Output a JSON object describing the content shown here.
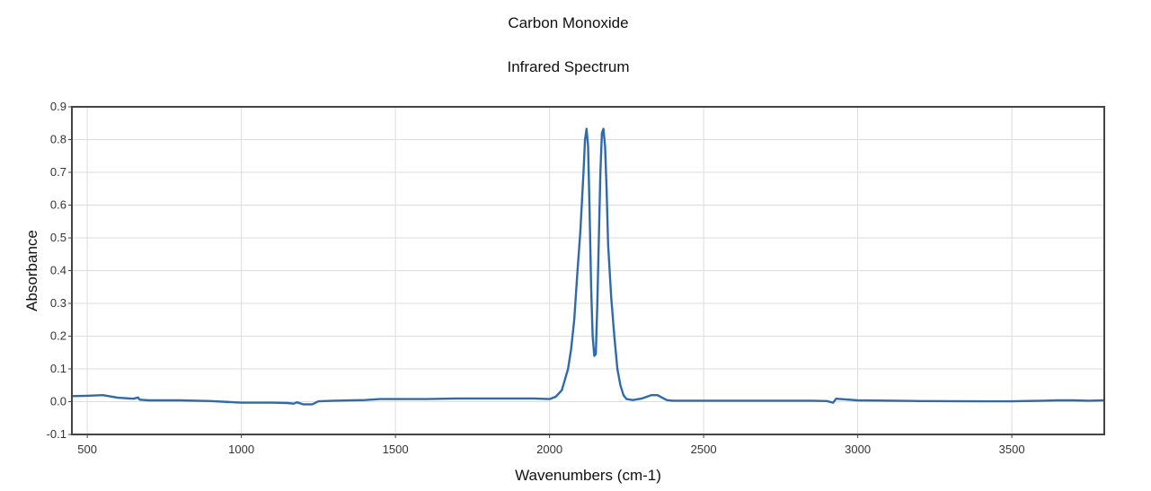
{
  "chart_data": {
    "type": "line",
    "title": "Carbon Monoxide",
    "subtitle": "Infrared Spectrum",
    "xlabel": "Wavenumbers (cm-1)",
    "ylabel": "Absorbance",
    "xlim": [
      450,
      3800
    ],
    "ylim": [
      -0.1,
      0.9
    ],
    "xticks": [
      500,
      1000,
      1500,
      2000,
      2500,
      3000,
      3500
    ],
    "yticks": [
      -0.1,
      0.0,
      0.1,
      0.2,
      0.3,
      0.4,
      0.5,
      0.6,
      0.7,
      0.8,
      0.9
    ],
    "ytick_labels": [
      "-0.1",
      "0.0",
      "0.1",
      "0.2",
      "0.3",
      "0.4",
      "0.5",
      "0.6",
      "0.7",
      "0.8",
      "0.9"
    ],
    "grid": true,
    "line_color": "#2f6aaa",
    "series": [
      {
        "x": [
          450,
          500,
          550,
          600,
          650,
          665,
          670,
          700,
          800,
          900,
          1000,
          1100,
          1150,
          1170,
          1180,
          1200,
          1230,
          1250,
          1300,
          1400,
          1450,
          1500,
          1600,
          1700,
          1800,
          1900,
          1950,
          2000,
          2020,
          2040,
          2060,
          2070,
          2080,
          2090,
          2100,
          2110,
          2115,
          2120,
          2125,
          2130,
          2135,
          2140,
          2145,
          2150,
          2155,
          2160,
          2165,
          2170,
          2175,
          2180,
          2185,
          2190,
          2200,
          2210,
          2220,
          2230,
          2240,
          2250,
          2270,
          2300,
          2330,
          2350,
          2380,
          2400,
          2500,
          2700,
          2850,
          2900,
          2920,
          2930,
          3000,
          3200,
          3400,
          3500,
          3600,
          3650,
          3700,
          3750,
          3800
        ],
        "y": [
          0.017,
          0.018,
          0.02,
          0.012,
          0.009,
          0.013,
          0.006,
          0.004,
          0.004,
          0.002,
          -0.003,
          -0.003,
          -0.004,
          -0.006,
          -0.002,
          -0.008,
          -0.008,
          0.001,
          0.003,
          0.005,
          0.008,
          0.008,
          0.008,
          0.01,
          0.01,
          0.01,
          0.01,
          0.008,
          0.015,
          0.035,
          0.1,
          0.16,
          0.25,
          0.39,
          0.52,
          0.7,
          0.8,
          0.833,
          0.78,
          0.58,
          0.35,
          0.2,
          0.14,
          0.145,
          0.3,
          0.5,
          0.7,
          0.82,
          0.833,
          0.78,
          0.65,
          0.48,
          0.32,
          0.2,
          0.1,
          0.05,
          0.02,
          0.008,
          0.005,
          0.01,
          0.02,
          0.02,
          0.005,
          0.003,
          0.003,
          0.003,
          0.003,
          0.002,
          -0.003,
          0.009,
          0.004,
          0.002,
          0.001,
          0.001,
          0.003,
          0.004,
          0.004,
          0.003,
          0.004
        ]
      }
    ]
  }
}
